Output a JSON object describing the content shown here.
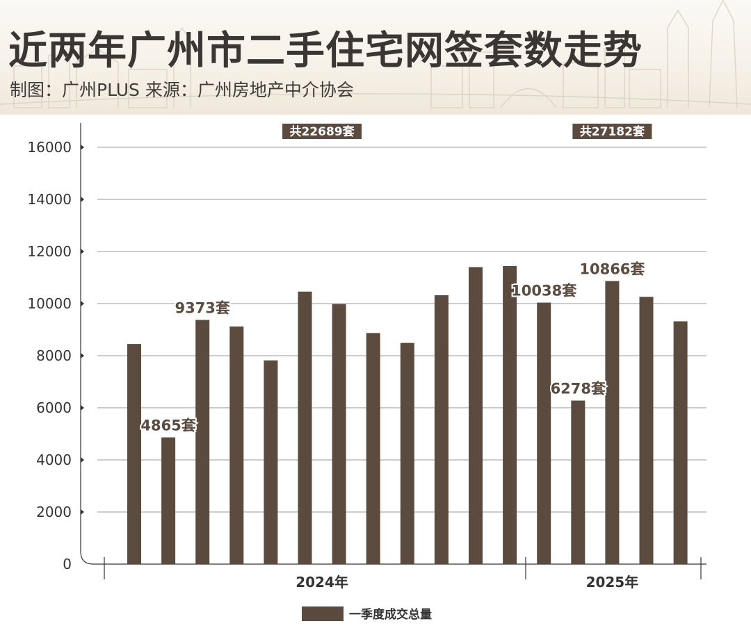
{
  "title": "近两年广州市二手住宅网签套数走势",
  "subtitle": "制图：广州PLUS  来源：广州房地产中介协会",
  "colors": {
    "bar": "#5b4a3e",
    "grid": "#9a9a9a",
    "axis": "#333333",
    "badge_bg": "#5b4a3e",
    "badge_text": "#ffffff",
    "label_text": "#5b4a3e"
  },
  "chart_data": {
    "type": "bar",
    "x": [
      "2024年",
      "2024年",
      "2024年",
      "2024年",
      "2024年",
      "2024年",
      "2024年",
      "2024年",
      "2024年",
      "2024年",
      "2024年",
      "2024年",
      "2025年",
      "2025年",
      "2025年",
      "2025年",
      "2025年"
    ],
    "groups": [
      {
        "label": "2024年",
        "start": 0,
        "end": 11
      },
      {
        "label": "2025年",
        "start": 12,
        "end": 16
      }
    ],
    "series": [
      {
        "name": "一季度成交总量",
        "values": [
          8450,
          4865,
          9373,
          9120,
          7820,
          10460,
          9980,
          8870,
          8490,
          10320,
          11400,
          11440,
          10038,
          6278,
          10866,
          10260,
          9320
        ]
      }
    ],
    "data_labels": [
      {
        "index": 1,
        "text": "4865套"
      },
      {
        "index": 2,
        "text": "9373套"
      },
      {
        "index": 12,
        "text": "10038套"
      },
      {
        "index": 13,
        "text": "6278套"
      },
      {
        "index": 14,
        "text": "10866套"
      }
    ],
    "group_badges": [
      {
        "text": "共22689套",
        "group": 0
      },
      {
        "text": "共27182套",
        "group": 1
      }
    ],
    "yticks": [
      0,
      2000,
      4000,
      6000,
      8000,
      10000,
      12000,
      14000,
      16000
    ],
    "ylim": [
      0,
      16000
    ],
    "grid": true,
    "legend_position": "bottom-center",
    "xlabel": "",
    "ylabel": ""
  }
}
